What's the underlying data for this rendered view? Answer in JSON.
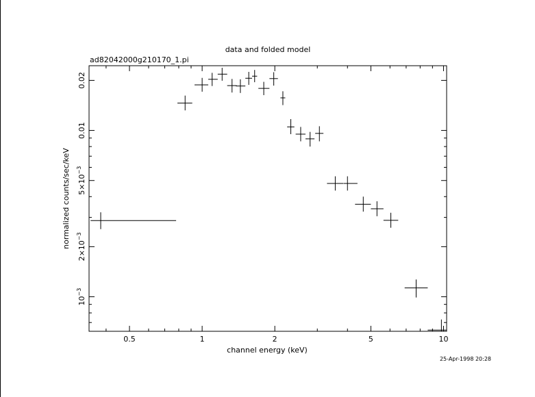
{
  "chart_data": {
    "type": "scatter",
    "title": "data and folded model",
    "subtitle": "ad82042000g210170_1.pi",
    "xlabel": "channel energy (keV)",
    "ylabel": "normalized counts/sec/keV",
    "timestamp": "25-Apr-1998 20:28",
    "x_scale": "log",
    "y_scale": "log",
    "xlim": [
      0.34,
      10.3
    ],
    "ylim": [
      0.00062,
      0.0245
    ],
    "x_ticks": [
      {
        "value": 0.5,
        "label": "0.5"
      },
      {
        "value": 1,
        "label": "1"
      },
      {
        "value": 2,
        "label": "2"
      },
      {
        "value": 5,
        "label": "5"
      },
      {
        "value": 10,
        "label": "10"
      }
    ],
    "y_ticks": [
      {
        "value": 0.001,
        "label": "10",
        "sup": "−3"
      },
      {
        "value": 0.002,
        "label": "2×10",
        "sup": "−3"
      },
      {
        "value": 0.005,
        "label": "5×10",
        "sup": "−3"
      },
      {
        "value": 0.01,
        "label": "0.01"
      },
      {
        "value": 0.02,
        "label": "0.02"
      }
    ],
    "points": [
      {
        "x": 0.38,
        "xlo": 0.345,
        "xhi": 0.78,
        "y": 0.00287,
        "ylo": 0.00255,
        "yhi": 0.00322
      },
      {
        "x": 0.85,
        "xlo": 0.79,
        "xhi": 0.91,
        "y": 0.0146,
        "ylo": 0.0132,
        "yhi": 0.0162
      },
      {
        "x": 1.0,
        "xlo": 0.93,
        "xhi": 1.06,
        "y": 0.0188,
        "ylo": 0.0171,
        "yhi": 0.0207
      },
      {
        "x": 1.1,
        "xlo": 1.06,
        "xhi": 1.16,
        "y": 0.0203,
        "ylo": 0.0185,
        "yhi": 0.0222
      },
      {
        "x": 1.21,
        "xlo": 1.16,
        "xhi": 1.27,
        "y": 0.0218,
        "ylo": 0.0199,
        "yhi": 0.0238
      },
      {
        "x": 1.33,
        "xlo": 1.27,
        "xhi": 1.39,
        "y": 0.0186,
        "ylo": 0.0169,
        "yhi": 0.0204
      },
      {
        "x": 1.44,
        "xlo": 1.38,
        "xhi": 1.51,
        "y": 0.0185,
        "ylo": 0.0168,
        "yhi": 0.0203
      },
      {
        "x": 1.56,
        "xlo": 1.51,
        "xhi": 1.61,
        "y": 0.0206,
        "ylo": 0.0188,
        "yhi": 0.0225
      },
      {
        "x": 1.65,
        "xlo": 1.61,
        "xhi": 1.69,
        "y": 0.0212,
        "ylo": 0.0195,
        "yhi": 0.0231
      },
      {
        "x": 1.8,
        "xlo": 1.71,
        "xhi": 1.9,
        "y": 0.0179,
        "ylo": 0.0163,
        "yhi": 0.0196
      },
      {
        "x": 1.98,
        "xlo": 1.9,
        "xhi": 2.06,
        "y": 0.0205,
        "ylo": 0.0186,
        "yhi": 0.0224
      },
      {
        "x": 2.16,
        "xlo": 2.11,
        "xhi": 2.21,
        "y": 0.0157,
        "ylo": 0.0142,
        "yhi": 0.0172
      },
      {
        "x": 2.33,
        "xlo": 2.25,
        "xhi": 2.41,
        "y": 0.0105,
        "ylo": 0.0095,
        "yhi": 0.0117
      },
      {
        "x": 2.56,
        "xlo": 2.44,
        "xhi": 2.68,
        "y": 0.0095,
        "ylo": 0.0086,
        "yhi": 0.0105
      },
      {
        "x": 2.8,
        "xlo": 2.68,
        "xhi": 2.92,
        "y": 0.0089,
        "ylo": 0.008,
        "yhi": 0.0098
      },
      {
        "x": 3.06,
        "xlo": 2.94,
        "xhi": 3.18,
        "y": 0.0096,
        "ylo": 0.0086,
        "yhi": 0.0106
      },
      {
        "x": 3.56,
        "xlo": 3.29,
        "xhi": 3.84,
        "y": 0.0048,
        "ylo": 0.00435,
        "yhi": 0.0053
      },
      {
        "x": 4.0,
        "xlo": 3.85,
        "xhi": 4.4,
        "y": 0.0048,
        "ylo": 0.00435,
        "yhi": 0.0053
      },
      {
        "x": 4.65,
        "xlo": 4.3,
        "xhi": 5.0,
        "y": 0.0036,
        "ylo": 0.00325,
        "yhi": 0.004
      },
      {
        "x": 5.3,
        "xlo": 5.0,
        "xhi": 5.64,
        "y": 0.00338,
        "ylo": 0.00305,
        "yhi": 0.00375
      },
      {
        "x": 6.05,
        "xlo": 5.64,
        "xhi": 6.49,
        "y": 0.00288,
        "ylo": 0.0026,
        "yhi": 0.0032
      },
      {
        "x": 7.7,
        "xlo": 6.9,
        "xhi": 8.6,
        "y": 0.00113,
        "ylo": 0.00099,
        "yhi": 0.00127
      },
      {
        "x": 9.8,
        "xlo": 8.6,
        "xhi": 10.3,
        "y": 0.00063,
        "ylo": 0.00062,
        "yhi": 0.00073
      }
    ]
  }
}
